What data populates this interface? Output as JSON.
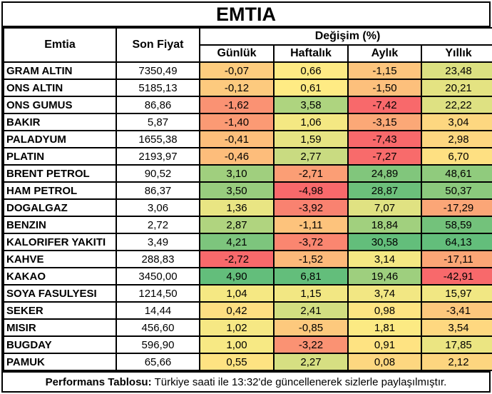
{
  "title": "EMTIA",
  "header": {
    "commodity": "Emtia",
    "last_price": "Son Fiyat",
    "change_group": "Değişim (%)",
    "periods": [
      "Günlük",
      "Haftalık",
      "Aylık",
      "Yıllık"
    ]
  },
  "colors": {
    "scale_negative": "#F8696B",
    "scale_neutral": "#FFEB84",
    "scale_positive": "#63BE7B",
    "grid": "#000000",
    "background": "#FFFFFF"
  },
  "rows": [
    {
      "name": "GRAM ALTIN",
      "price": "7350,49",
      "changes": [
        {
          "v": "-0,07",
          "bg": "#FDCC7E"
        },
        {
          "v": "0,66",
          "bg": "#FEEA84"
        },
        {
          "v": "-1,15",
          "bg": "#FDC57D"
        },
        {
          "v": "23,48",
          "bg": "#DBE081"
        }
      ]
    },
    {
      "name": "ONS ALTIN",
      "price": "5185,13",
      "changes": [
        {
          "v": "-0,12",
          "bg": "#FDCA7E"
        },
        {
          "v": "0,61",
          "bg": "#FFEB84"
        },
        {
          "v": "-1,50",
          "bg": "#FDC07C"
        },
        {
          "v": "20,21",
          "bg": "#E4E382"
        }
      ]
    },
    {
      "name": "ONS GUMUS",
      "price": "86,86",
      "changes": [
        {
          "v": "-1,62",
          "bg": "#FA9273"
        },
        {
          "v": "3,58",
          "bg": "#AED47F"
        },
        {
          "v": "-7,42",
          "bg": "#F8696B"
        },
        {
          "v": "22,22",
          "bg": "#DEE182"
        }
      ]
    },
    {
      "name": "BAKIR",
      "price": "5,87",
      "changes": [
        {
          "v": "-1,40",
          "bg": "#FB9A74"
        },
        {
          "v": "1,06",
          "bg": "#F4E883"
        },
        {
          "v": "-3,15",
          "bg": "#FBA877"
        },
        {
          "v": "3,04",
          "bg": "#FDD780"
        }
      ]
    },
    {
      "name": "PALADYUM",
      "price": "1655,38",
      "changes": [
        {
          "v": "-0,41",
          "bg": "#FDBF7B"
        },
        {
          "v": "1,59",
          "bg": "#E7E483"
        },
        {
          "v": "-7,43",
          "bg": "#F8696B"
        },
        {
          "v": "2,98",
          "bg": "#FDD780"
        }
      ]
    },
    {
      "name": "PLATIN",
      "price": "2193,97",
      "changes": [
        {
          "v": "-0,46",
          "bg": "#FDBD7B"
        },
        {
          "v": "2,77",
          "bg": "#C9DB81"
        },
        {
          "v": "-7,27",
          "bg": "#F86B6B"
        },
        {
          "v": "6,70",
          "bg": "#FEE082"
        }
      ]
    },
    {
      "name": "BRENT PETROL",
      "price": "90,52",
      "changes": [
        {
          "v": "3,10",
          "bg": "#A0CF7E"
        },
        {
          "v": "-2,71",
          "bg": "#FB9E75"
        },
        {
          "v": "24,89",
          "bg": "#81C67C"
        },
        {
          "v": "48,61",
          "bg": "#90CB7D"
        }
      ]
    },
    {
      "name": "HAM PETROL",
      "price": "86,37",
      "changes": [
        {
          "v": "3,50",
          "bg": "#98CD7E"
        },
        {
          "v": "-4,98",
          "bg": "#F8696B"
        },
        {
          "v": "28,87",
          "bg": "#6CC07B"
        },
        {
          "v": "50,37",
          "bg": "#8BC97D"
        }
      ]
    },
    {
      "name": "DOGALGAZ",
      "price": "3,06",
      "changes": [
        {
          "v": "1,36",
          "bg": "#E9E583"
        },
        {
          "v": "-3,92",
          "bg": "#F98270"
        },
        {
          "v": "7,07",
          "bg": "#E0E282"
        },
        {
          "v": "-17,29",
          "bg": "#FBA677"
        }
      ]
    },
    {
      "name": "BENZIN",
      "price": "2,72",
      "changes": [
        {
          "v": "2,87",
          "bg": "#B0D47F"
        },
        {
          "v": "-1,11",
          "bg": "#FDC37C"
        },
        {
          "v": "18,84",
          "bg": "#A1D07E"
        },
        {
          "v": "58,59",
          "bg": "#73C27B"
        }
      ]
    },
    {
      "name": "KALORIFER YAKITI",
      "price": "3,49",
      "changes": [
        {
          "v": "4,21",
          "bg": "#7DC57D"
        },
        {
          "v": "-3,72",
          "bg": "#FA8670"
        },
        {
          "v": "30,58",
          "bg": "#63BE7B"
        },
        {
          "v": "64,13",
          "bg": "#63BE7B"
        }
      ]
    },
    {
      "name": "KAHVE",
      "price": "288,83",
      "changes": [
        {
          "v": "-2,72",
          "bg": "#F8696B"
        },
        {
          "v": "-1,52",
          "bg": "#FCB97A"
        },
        {
          "v": "3,14",
          "bg": "#F5E883"
        },
        {
          "v": "-17,11",
          "bg": "#FBA676"
        }
      ]
    },
    {
      "name": "KAKAO",
      "price": "3450,00",
      "changes": [
        {
          "v": "4,90",
          "bg": "#63BE7B"
        },
        {
          "v": "6,81",
          "bg": "#63BE7B"
        },
        {
          "v": "19,46",
          "bg": "#9ECF7E"
        },
        {
          "v": "-42,91",
          "bg": "#F8696B"
        }
      ]
    },
    {
      "name": "SOYA FASULYESI",
      "price": "1214,50",
      "changes": [
        {
          "v": "1,04",
          "bg": "#F5E883"
        },
        {
          "v": "1,15",
          "bg": "#F2E783"
        },
        {
          "v": "3,74",
          "bg": "#F2E783"
        },
        {
          "v": "15,97",
          "bg": "#F1E783"
        }
      ]
    },
    {
      "name": "SEKER",
      "price": "14,44",
      "changes": [
        {
          "v": "0,42",
          "bg": "#FEDE82"
        },
        {
          "v": "2,41",
          "bg": "#D2DE81"
        },
        {
          "v": "0,98",
          "bg": "#FEE482"
        },
        {
          "v": "-3,41",
          "bg": "#FDC77D"
        }
      ]
    },
    {
      "name": "MISIR",
      "price": "456,60",
      "changes": [
        {
          "v": "1,02",
          "bg": "#F6E884"
        },
        {
          "v": "-0,85",
          "bg": "#FDC97D"
        },
        {
          "v": "1,81",
          "bg": "#FCEA83"
        },
        {
          "v": "3,54",
          "bg": "#FED880"
        }
      ]
    },
    {
      "name": "BUGDAY",
      "price": "596,90",
      "changes": [
        {
          "v": "1,00",
          "bg": "#F7E984"
        },
        {
          "v": "-3,22",
          "bg": "#FA9273"
        },
        {
          "v": "0,91",
          "bg": "#FEE382"
        },
        {
          "v": "17,85",
          "bg": "#EBE582"
        }
      ]
    },
    {
      "name": "PAMUK",
      "price": "65,66",
      "changes": [
        {
          "v": "0,55",
          "bg": "#FEE382"
        },
        {
          "v": "2,27",
          "bg": "#D6DF82"
        },
        {
          "v": "0,08",
          "bg": "#FDD780"
        },
        {
          "v": "2,12",
          "bg": "#FDD57F"
        }
      ]
    }
  ],
  "footer": {
    "label": "Performans Tablosu:",
    "text": "Türkiye saati ile 13:32'de güncellenerek sizlerle paylaşılmıştır."
  },
  "chart_data": {
    "type": "table",
    "title": "EMTIA",
    "columns": [
      "Emtia",
      "Son Fiyat",
      "Günlük",
      "Haftalık",
      "Aylık",
      "Yıllık"
    ],
    "rows": [
      [
        "GRAM ALTIN",
        7350.49,
        -0.07,
        0.66,
        -1.15,
        23.48
      ],
      [
        "ONS ALTIN",
        5185.13,
        -0.12,
        0.61,
        -1.5,
        20.21
      ],
      [
        "ONS GUMUS",
        86.86,
        -1.62,
        3.58,
        -7.42,
        22.22
      ],
      [
        "BAKIR",
        5.87,
        -1.4,
        1.06,
        -3.15,
        3.04
      ],
      [
        "PALADYUM",
        1655.38,
        -0.41,
        1.59,
        -7.43,
        2.98
      ],
      [
        "PLATIN",
        2193.97,
        -0.46,
        2.77,
        -7.27,
        6.7
      ],
      [
        "BRENT PETROL",
        90.52,
        3.1,
        -2.71,
        24.89,
        48.61
      ],
      [
        "HAM PETROL",
        86.37,
        3.5,
        -4.98,
        28.87,
        50.37
      ],
      [
        "DOGALGAZ",
        3.06,
        1.36,
        -3.92,
        7.07,
        -17.29
      ],
      [
        "BENZIN",
        2.72,
        2.87,
        -1.11,
        18.84,
        58.59
      ],
      [
        "KALORIFER YAKITI",
        3.49,
        4.21,
        -3.72,
        30.58,
        64.13
      ],
      [
        "KAHVE",
        288.83,
        -2.72,
        -1.52,
        3.14,
        -17.11
      ],
      [
        "KAKAO",
        3450.0,
        4.9,
        6.81,
        19.46,
        -42.91
      ],
      [
        "SOYA FASULYESI",
        1214.5,
        1.04,
        1.15,
        3.74,
        15.97
      ],
      [
        "SEKER",
        14.44,
        0.42,
        2.41,
        0.98,
        -3.41
      ],
      [
        "MISIR",
        456.6,
        1.02,
        -0.85,
        1.81,
        3.54
      ],
      [
        "BUGDAY",
        596.9,
        1.0,
        -3.22,
        0.91,
        17.85
      ],
      [
        "PAMUK",
        65.66,
        0.55,
        2.27,
        0.08,
        2.12
      ]
    ],
    "notes": "Cell colors follow a red(#F8696B)-yellow(#FFEB84)-green(#63BE7B) 3-color scale per change column"
  }
}
